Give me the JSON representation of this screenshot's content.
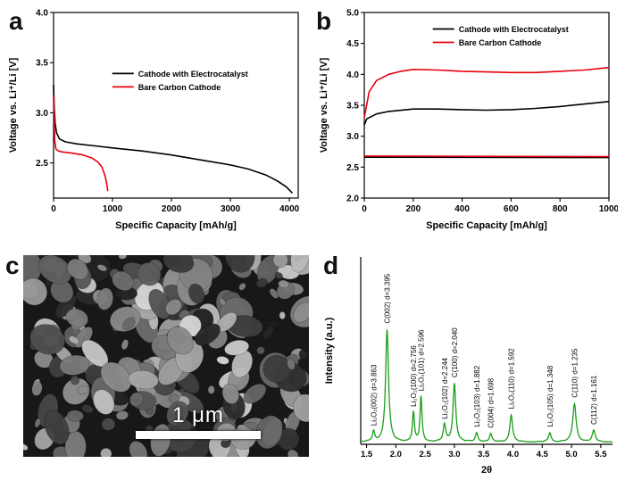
{
  "panels": {
    "a": {
      "letter": "a"
    },
    "b": {
      "letter": "b"
    },
    "c": {
      "letter": "c",
      "scale_bar": "1 μm"
    },
    "d": {
      "letter": "d"
    }
  },
  "chart_data": [
    {
      "target": "chart-a",
      "type": "line",
      "title": "",
      "xlabel": "Specific Capacity [mAh/g]",
      "ylabel": "Voltage vs. Li⁺/Li [V]",
      "xlim": [
        0,
        4150
      ],
      "ylim": [
        2.15,
        4.0
      ],
      "xticks": [
        0,
        1000,
        2000,
        3000,
        4000
      ],
      "yticks": [
        2.5,
        3.0,
        3.5,
        4.0
      ],
      "legend_pos": {
        "x": 0.24,
        "y": 0.3
      },
      "series": [
        {
          "name": "Cathode with Electrocatalyst",
          "color": "#000000",
          "legend": true,
          "points": [
            [
              0,
              3.28
            ],
            [
              10,
              3.05
            ],
            [
              25,
              2.9
            ],
            [
              50,
              2.8
            ],
            [
              100,
              2.74
            ],
            [
              200,
              2.71
            ],
            [
              400,
              2.69
            ],
            [
              700,
              2.67
            ],
            [
              1000,
              2.65
            ],
            [
              1500,
              2.62
            ],
            [
              2000,
              2.58
            ],
            [
              2500,
              2.53
            ],
            [
              3000,
              2.48
            ],
            [
              3300,
              2.44
            ],
            [
              3600,
              2.38
            ],
            [
              3800,
              2.32
            ],
            [
              3950,
              2.26
            ],
            [
              4050,
              2.2
            ]
          ]
        },
        {
          "name": "Bare Carbon Cathode",
          "color": "#e8000d",
          "legend": true,
          "points": [
            [
              0,
              3.17
            ],
            [
              8,
              2.95
            ],
            [
              20,
              2.72
            ],
            [
              40,
              2.64
            ],
            [
              80,
              2.62
            ],
            [
              150,
              2.61
            ],
            [
              300,
              2.6
            ],
            [
              500,
              2.58
            ],
            [
              650,
              2.55
            ],
            [
              750,
              2.51
            ],
            [
              820,
              2.46
            ],
            [
              870,
              2.38
            ],
            [
              900,
              2.3
            ],
            [
              920,
              2.22
            ]
          ]
        }
      ]
    },
    {
      "target": "chart-b",
      "type": "line",
      "title": "",
      "xlabel": "Specific Capacity [mAh/g]",
      "ylabel": "Voltage vs. Li⁺/Li [V]",
      "xlim": [
        0,
        1000
      ],
      "ylim": [
        2.0,
        5.0
      ],
      "xticks": [
        0,
        200,
        400,
        600,
        800,
        1000
      ],
      "yticks": [
        2.0,
        2.5,
        3.0,
        3.5,
        4.0,
        4.5,
        5.0
      ],
      "legend_pos": {
        "x": 0.28,
        "y": 0.06
      },
      "series": [
        {
          "name": "Cathode with Electrocatalyst",
          "color": "#000000",
          "legend": true,
          "points": [
            [
              0,
              3.18
            ],
            [
              10,
              3.28
            ],
            [
              50,
              3.36
            ],
            [
              100,
              3.4
            ],
            [
              200,
              3.44
            ],
            [
              300,
              3.44
            ],
            [
              400,
              3.43
            ],
            [
              500,
              3.42
            ],
            [
              600,
              3.43
            ],
            [
              700,
              3.45
            ],
            [
              800,
              3.48
            ],
            [
              900,
              3.52
            ],
            [
              1000,
              3.56
            ]
          ]
        },
        {
          "name": "Bare Carbon Cathode",
          "color": "#e8000d",
          "legend": true,
          "points": [
            [
              0,
              3.3
            ],
            [
              20,
              3.72
            ],
            [
              50,
              3.9
            ],
            [
              100,
              4.0
            ],
            [
              150,
              4.05
            ],
            [
              200,
              4.08
            ],
            [
              300,
              4.07
            ],
            [
              400,
              4.05
            ],
            [
              500,
              4.04
            ],
            [
              600,
              4.03
            ],
            [
              700,
              4.03
            ],
            [
              800,
              4.05
            ],
            [
              900,
              4.07
            ],
            [
              1000,
              4.11
            ]
          ]
        },
        {
          "name": "Discharge plateau (Electrocatalyst)",
          "color": "#000000",
          "legend": false,
          "points": [
            [
              0,
              2.66
            ],
            [
              1000,
              2.655
            ]
          ]
        },
        {
          "name": "Discharge plateau (Bare Carbon)",
          "color": "#e8000d",
          "legend": false,
          "points": [
            [
              0,
              2.68
            ],
            [
              1000,
              2.67
            ]
          ]
        }
      ]
    },
    {
      "target": "chart-d",
      "type": "xrd",
      "title": "",
      "xlabel": "2θ",
      "ylabel": "Intensity (a.u.)",
      "xlim": [
        1.4,
        5.7
      ],
      "xticks": [
        1.5,
        2.0,
        2.5,
        3.0,
        3.5,
        4.0,
        4.5,
        5.0,
        5.5
      ],
      "color": "#1b9e1b",
      "peaks": [
        {
          "center": 1.62,
          "height": 0.09,
          "width": 0.022,
          "label": "Li₂O₂(002) d=3.863"
        },
        {
          "center": 1.85,
          "height": 1.0,
          "width": 0.03,
          "label": "C(002) d=3.395"
        },
        {
          "center": 2.3,
          "height": 0.26,
          "width": 0.02,
          "label": "Li₂O₂(100) d=2.756"
        },
        {
          "center": 2.43,
          "height": 0.4,
          "width": 0.02,
          "label": "Li₂O₂(101) d=2.596"
        },
        {
          "center": 2.83,
          "height": 0.15,
          "width": 0.025,
          "label": "Li₂O₂(102) d=2.244"
        },
        {
          "center": 3.0,
          "height": 0.52,
          "width": 0.028,
          "label": "C(100) d=2.040"
        },
        {
          "center": 3.38,
          "height": 0.08,
          "width": 0.025,
          "label": "Li₂O₂(103) d=1.882"
        },
        {
          "center": 3.62,
          "height": 0.07,
          "width": 0.025,
          "label": "C(004) d=1.698"
        },
        {
          "center": 3.97,
          "height": 0.24,
          "width": 0.028,
          "label": "Li₂O₂(110) d=1.592"
        },
        {
          "center": 4.63,
          "height": 0.08,
          "width": 0.026,
          "label": "Li₂O₂(105) d=1.348"
        },
        {
          "center": 5.05,
          "height": 0.34,
          "width": 0.034,
          "label": "C(110) d=1.235"
        },
        {
          "center": 5.38,
          "height": 0.1,
          "width": 0.03,
          "label": "C(112) d=1.161"
        }
      ]
    }
  ]
}
